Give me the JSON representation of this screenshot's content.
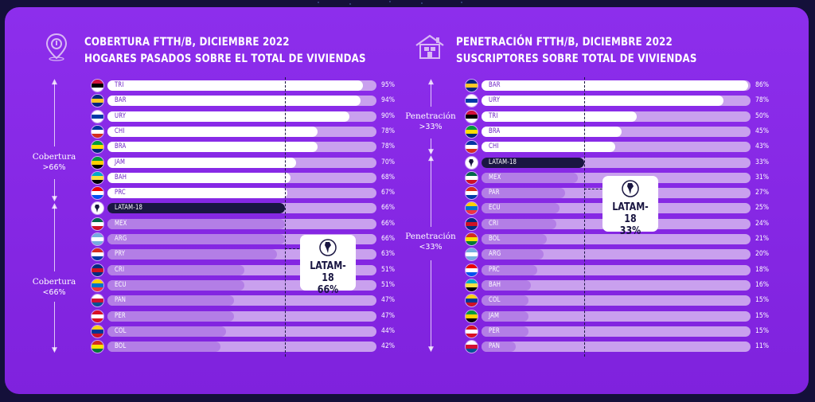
{
  "chart_data": [
    {
      "type": "bar",
      "title": "COBERTURA FTTH/B, DICIEMBRE 2022",
      "subtitle": "HOGARES PASADOS SOBRE EL TOTAL DE VIVIENDAS",
      "icon": "location-pin-icon",
      "reference": {
        "label": "LATAM-18",
        "value": 66,
        "display": "66%"
      },
      "groups": [
        {
          "label": "Cobertura",
          "sub": ">66%"
        },
        {
          "label": "Cobertura",
          "sub": "<66%"
        }
      ],
      "categories": [
        "TRI",
        "BAR",
        "URY",
        "CHI",
        "BRA",
        "JAM",
        "BAH",
        "PRC",
        "LATAM-18",
        "MEX",
        "ARG",
        "PRY",
        "CRI",
        "ECU",
        "PAN",
        "PER",
        "COL",
        "BOL"
      ],
      "values": [
        95,
        94,
        90,
        78,
        78,
        70,
        68,
        67,
        66,
        66,
        66,
        63,
        51,
        51,
        47,
        47,
        44,
        42
      ],
      "labels": [
        "95%",
        "94%",
        "90%",
        "78%",
        "78%",
        "70%",
        "68%",
        "67%",
        "66%",
        "66%",
        "66%",
        "63%",
        "51%",
        "51%",
        "47%",
        "47%",
        "44%",
        "42%"
      ],
      "xlim": [
        0,
        100
      ]
    },
    {
      "type": "bar",
      "title": "PENETRACIÓN FTTH/B, DICIEMBRE 2022",
      "subtitle": "SUSCRIPTORES SOBRE TOTAL DE VIVIENDAS",
      "icon": "house-icon",
      "reference": {
        "label": "LATAM-18",
        "value": 33,
        "display": "33%"
      },
      "groups": [
        {
          "label": "Penetración",
          "sub": ">33%"
        },
        {
          "label": "Penetración",
          "sub": "<33%"
        }
      ],
      "categories": [
        "BAR",
        "URY",
        "TRI",
        "BRA",
        "CHI",
        "LATAM-18",
        "MEX",
        "PAR",
        "ECU",
        "CRI",
        "BOL",
        "ARG",
        "PRC",
        "BAH",
        "COL",
        "JAM",
        "PER",
        "PAN"
      ],
      "values": [
        86,
        78,
        50,
        45,
        43,
        33,
        31,
        27,
        25,
        24,
        21,
        20,
        18,
        16,
        15,
        15,
        15,
        11
      ],
      "labels": [
        "86%",
        "78%",
        "50%",
        "45%",
        "43%",
        "33%",
        "31%",
        "27%",
        "25%",
        "24%",
        "21%",
        "20%",
        "18%",
        "16%",
        "15%",
        "15%",
        "15%",
        "11%"
      ],
      "xlim": [
        0,
        100
      ]
    }
  ],
  "colors": {
    "background": "#8a2be2",
    "bar_above": "#ffffff",
    "bar_below": "#b37ee6",
    "track": "#c9a0ee",
    "reference_bar": "#1a1642",
    "code_text": "#6a1dc4"
  }
}
